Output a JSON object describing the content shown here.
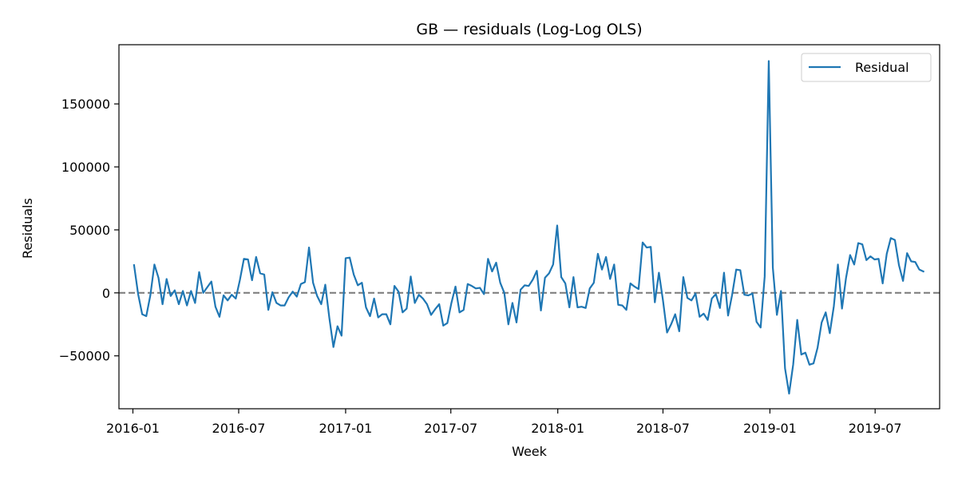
{
  "chart_data": {
    "type": "line",
    "title": "GB — residuals (Log-Log OLS)",
    "xlabel": "Week",
    "ylabel": "Residuals",
    "x_ticks": [
      "2016-01",
      "2016-07",
      "2017-01",
      "2017-07",
      "2018-01",
      "2018-07",
      "2019-01",
      "2019-07"
    ],
    "y_ticks": [
      -50000,
      0,
      50000,
      100000,
      150000
    ],
    "xlim": [
      "2015-12-08",
      "2019-10-20"
    ],
    "ylim": [
      -92000,
      197000
    ],
    "grid": false,
    "legend_position": "top-right",
    "reference_line": {
      "y": 0,
      "style": "dashed",
      "color": "#808080"
    },
    "series": [
      {
        "name": "Residual",
        "color": "#1f77b4",
        "points": [
          [
            "2016-01-03",
            22000
          ],
          [
            "2016-01-10",
            -1000
          ],
          [
            "2016-01-17",
            -17000
          ],
          [
            "2016-01-24",
            -18500
          ],
          [
            "2016-01-31",
            -2000
          ],
          [
            "2016-02-07",
            22500
          ],
          [
            "2016-02-14",
            12000
          ],
          [
            "2016-02-21",
            -9000
          ],
          [
            "2016-02-28",
            11000
          ],
          [
            "2016-03-06",
            -2500
          ],
          [
            "2016-03-13",
            2000
          ],
          [
            "2016-03-20",
            -9000
          ],
          [
            "2016-03-27",
            1500
          ],
          [
            "2016-04-03",
            -10000
          ],
          [
            "2016-04-10",
            1500
          ],
          [
            "2016-04-17",
            -8000
          ],
          [
            "2016-04-24",
            16500
          ],
          [
            "2016-05-01",
            0
          ],
          [
            "2016-05-08",
            4500
          ],
          [
            "2016-05-15",
            9000
          ],
          [
            "2016-05-22",
            -11000
          ],
          [
            "2016-05-29",
            -19000
          ],
          [
            "2016-06-05",
            -2000
          ],
          [
            "2016-06-12",
            -6000
          ],
          [
            "2016-06-19",
            -1500
          ],
          [
            "2016-06-26",
            -4500
          ],
          [
            "2016-07-03",
            10000
          ],
          [
            "2016-07-10",
            27000
          ],
          [
            "2016-07-17",
            26500
          ],
          [
            "2016-07-24",
            10000
          ],
          [
            "2016-07-31",
            28500
          ],
          [
            "2016-08-07",
            15500
          ],
          [
            "2016-08-14",
            14500
          ],
          [
            "2016-08-21",
            -13500
          ],
          [
            "2016-08-28",
            500
          ],
          [
            "2016-09-04",
            -8000
          ],
          [
            "2016-09-11",
            -10000
          ],
          [
            "2016-09-18",
            -10000
          ],
          [
            "2016-09-25",
            -3500
          ],
          [
            "2016-10-02",
            1000
          ],
          [
            "2016-10-09",
            -3000
          ],
          [
            "2016-10-16",
            7000
          ],
          [
            "2016-10-23",
            8500
          ],
          [
            "2016-10-30",
            36000
          ],
          [
            "2016-11-06",
            8000
          ],
          [
            "2016-11-13",
            -2500
          ],
          [
            "2016-11-20",
            -9000
          ],
          [
            "2016-11-27",
            6500
          ],
          [
            "2016-12-04",
            -20000
          ],
          [
            "2016-12-11",
            -43000
          ],
          [
            "2016-12-18",
            -26500
          ],
          [
            "2016-12-25",
            -34000
          ],
          [
            "2017-01-01",
            27500
          ],
          [
            "2017-01-08",
            28000
          ],
          [
            "2017-01-15",
            14500
          ],
          [
            "2017-01-22",
            6000
          ],
          [
            "2017-01-29",
            8000
          ],
          [
            "2017-02-05",
            -11500
          ],
          [
            "2017-02-12",
            -18500
          ],
          [
            "2017-02-19",
            -4500
          ],
          [
            "2017-02-26",
            -19500
          ],
          [
            "2017-03-05",
            -17000
          ],
          [
            "2017-03-12",
            -17000
          ],
          [
            "2017-03-19",
            -25000
          ],
          [
            "2017-03-26",
            5500
          ],
          [
            "2017-04-02",
            1000
          ],
          [
            "2017-04-09",
            -15500
          ],
          [
            "2017-04-16",
            -12500
          ],
          [
            "2017-04-23",
            13000
          ],
          [
            "2017-04-30",
            -8000
          ],
          [
            "2017-05-07",
            -1500
          ],
          [
            "2017-05-14",
            -4500
          ],
          [
            "2017-05-21",
            -9000
          ],
          [
            "2017-05-28",
            -17500
          ],
          [
            "2017-06-04",
            -13000
          ],
          [
            "2017-06-11",
            -9000
          ],
          [
            "2017-06-18",
            -26000
          ],
          [
            "2017-06-25",
            -24000
          ],
          [
            "2017-07-02",
            -8000
          ],
          [
            "2017-07-09",
            5000
          ],
          [
            "2017-07-16",
            -15500
          ],
          [
            "2017-07-23",
            -13500
          ],
          [
            "2017-07-30",
            7000
          ],
          [
            "2017-08-06",
            5500
          ],
          [
            "2017-08-13",
            3500
          ],
          [
            "2017-08-20",
            4000
          ],
          [
            "2017-08-27",
            -1000
          ],
          [
            "2017-09-03",
            27000
          ],
          [
            "2017-09-10",
            17000
          ],
          [
            "2017-09-17",
            24000
          ],
          [
            "2017-09-24",
            8000
          ],
          [
            "2017-10-01",
            0
          ],
          [
            "2017-10-08",
            -25000
          ],
          [
            "2017-10-15",
            -8000
          ],
          [
            "2017-10-22",
            -23500
          ],
          [
            "2017-10-29",
            2500
          ],
          [
            "2017-11-05",
            6000
          ],
          [
            "2017-11-12",
            5500
          ],
          [
            "2017-11-19",
            10500
          ],
          [
            "2017-11-26",
            17500
          ],
          [
            "2017-12-03",
            -14000
          ],
          [
            "2017-12-10",
            12000
          ],
          [
            "2017-12-17",
            15500
          ],
          [
            "2017-12-24",
            22500
          ],
          [
            "2017-12-31",
            53500
          ],
          [
            "2018-01-07",
            12500
          ],
          [
            "2018-01-14",
            7500
          ],
          [
            "2018-01-21",
            -11500
          ],
          [
            "2018-01-28",
            12500
          ],
          [
            "2018-02-04",
            -11500
          ],
          [
            "2018-02-11",
            -11000
          ],
          [
            "2018-02-18",
            -12000
          ],
          [
            "2018-02-25",
            3500
          ],
          [
            "2018-03-04",
            8000
          ],
          [
            "2018-03-11",
            31000
          ],
          [
            "2018-03-18",
            18500
          ],
          [
            "2018-03-25",
            28500
          ],
          [
            "2018-04-01",
            11000
          ],
          [
            "2018-04-08",
            22500
          ],
          [
            "2018-04-15",
            -9500
          ],
          [
            "2018-04-22",
            -10000
          ],
          [
            "2018-04-29",
            -13500
          ],
          [
            "2018-05-06",
            7500
          ],
          [
            "2018-05-13",
            5000
          ],
          [
            "2018-05-20",
            3000
          ],
          [
            "2018-05-27",
            40000
          ],
          [
            "2018-06-03",
            36000
          ],
          [
            "2018-06-10",
            36500
          ],
          [
            "2018-06-17",
            -7500
          ],
          [
            "2018-06-24",
            16000
          ],
          [
            "2018-07-01",
            -6000
          ],
          [
            "2018-07-08",
            -31500
          ],
          [
            "2018-07-15",
            -25000
          ],
          [
            "2018-07-22",
            -17000
          ],
          [
            "2018-07-29",
            -30500
          ],
          [
            "2018-08-05",
            12500
          ],
          [
            "2018-08-12",
            -4000
          ],
          [
            "2018-08-19",
            -6000
          ],
          [
            "2018-08-26",
            -500
          ],
          [
            "2018-09-02",
            -19000
          ],
          [
            "2018-09-09",
            -16500
          ],
          [
            "2018-09-16",
            -21500
          ],
          [
            "2018-09-23",
            -4500
          ],
          [
            "2018-09-30",
            -1000
          ],
          [
            "2018-10-07",
            -12000
          ],
          [
            "2018-10-14",
            16000
          ],
          [
            "2018-10-21",
            -18000
          ],
          [
            "2018-10-28",
            -1500
          ],
          [
            "2018-11-04",
            18500
          ],
          [
            "2018-11-11",
            18000
          ],
          [
            "2018-11-18",
            -1500
          ],
          [
            "2018-11-25",
            -2000
          ],
          [
            "2018-12-02",
            -500
          ],
          [
            "2018-12-09",
            -23000
          ],
          [
            "2018-12-16",
            -27500
          ],
          [
            "2018-12-23",
            13000
          ],
          [
            "2018-12-30",
            184000
          ],
          [
            "2019-01-06",
            20000
          ],
          [
            "2019-01-13",
            -17500
          ],
          [
            "2019-01-20",
            1500
          ],
          [
            "2019-01-27",
            -60000
          ],
          [
            "2019-02-03",
            -80000
          ],
          [
            "2019-02-10",
            -57000
          ],
          [
            "2019-02-17",
            -21500
          ],
          [
            "2019-02-24",
            -49000
          ],
          [
            "2019-03-03",
            -47500
          ],
          [
            "2019-03-10",
            -57000
          ],
          [
            "2019-03-17",
            -56000
          ],
          [
            "2019-03-24",
            -43500
          ],
          [
            "2019-03-31",
            -23500
          ],
          [
            "2019-04-07",
            -15500
          ],
          [
            "2019-04-14",
            -32000
          ],
          [
            "2019-04-21",
            -10500
          ],
          [
            "2019-04-28",
            22500
          ],
          [
            "2019-05-05",
            -12500
          ],
          [
            "2019-05-12",
            12000
          ],
          [
            "2019-05-19",
            30000
          ],
          [
            "2019-05-26",
            22500
          ],
          [
            "2019-06-02",
            39500
          ],
          [
            "2019-06-09",
            38500
          ],
          [
            "2019-06-16",
            26000
          ],
          [
            "2019-06-23",
            29000
          ],
          [
            "2019-06-30",
            26500
          ],
          [
            "2019-07-07",
            27000
          ],
          [
            "2019-07-14",
            7500
          ],
          [
            "2019-07-21",
            31000
          ],
          [
            "2019-07-28",
            43500
          ],
          [
            "2019-08-04",
            42000
          ],
          [
            "2019-08-11",
            22000
          ],
          [
            "2019-08-18",
            9500
          ],
          [
            "2019-08-25",
            31500
          ],
          [
            "2019-09-01",
            25000
          ],
          [
            "2019-09-08",
            24500
          ],
          [
            "2019-09-15",
            18500
          ],
          [
            "2019-09-22",
            17000
          ]
        ]
      }
    ]
  }
}
